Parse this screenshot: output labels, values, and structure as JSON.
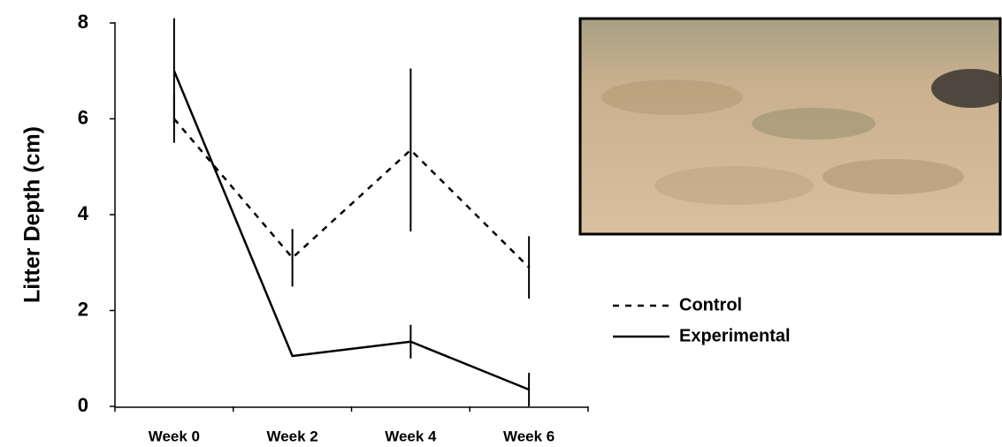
{
  "chart_data": {
    "type": "line",
    "y_label": "Litter Depth (cm)",
    "categories": [
      "Week 0",
      "Week 2",
      "Week 4",
      "Week 6"
    ],
    "series": [
      {
        "name": "Control",
        "color": "#000000",
        "dash": true,
        "values": [
          6.0,
          3.1,
          5.35,
          2.9
        ],
        "errors": [
          0.5,
          0.6,
          1.7,
          0.65
        ]
      },
      {
        "name": "Experimental",
        "color": "#000000",
        "dash": false,
        "values": [
          7.0,
          1.05,
          1.35,
          0.35
        ],
        "errors": [
          1.1,
          null,
          0.35,
          0.35
        ]
      }
    ],
    "ylim": [
      0,
      8
    ],
    "yticks": [
      0,
      2,
      4,
      6,
      8
    ],
    "grid": false
  }
}
